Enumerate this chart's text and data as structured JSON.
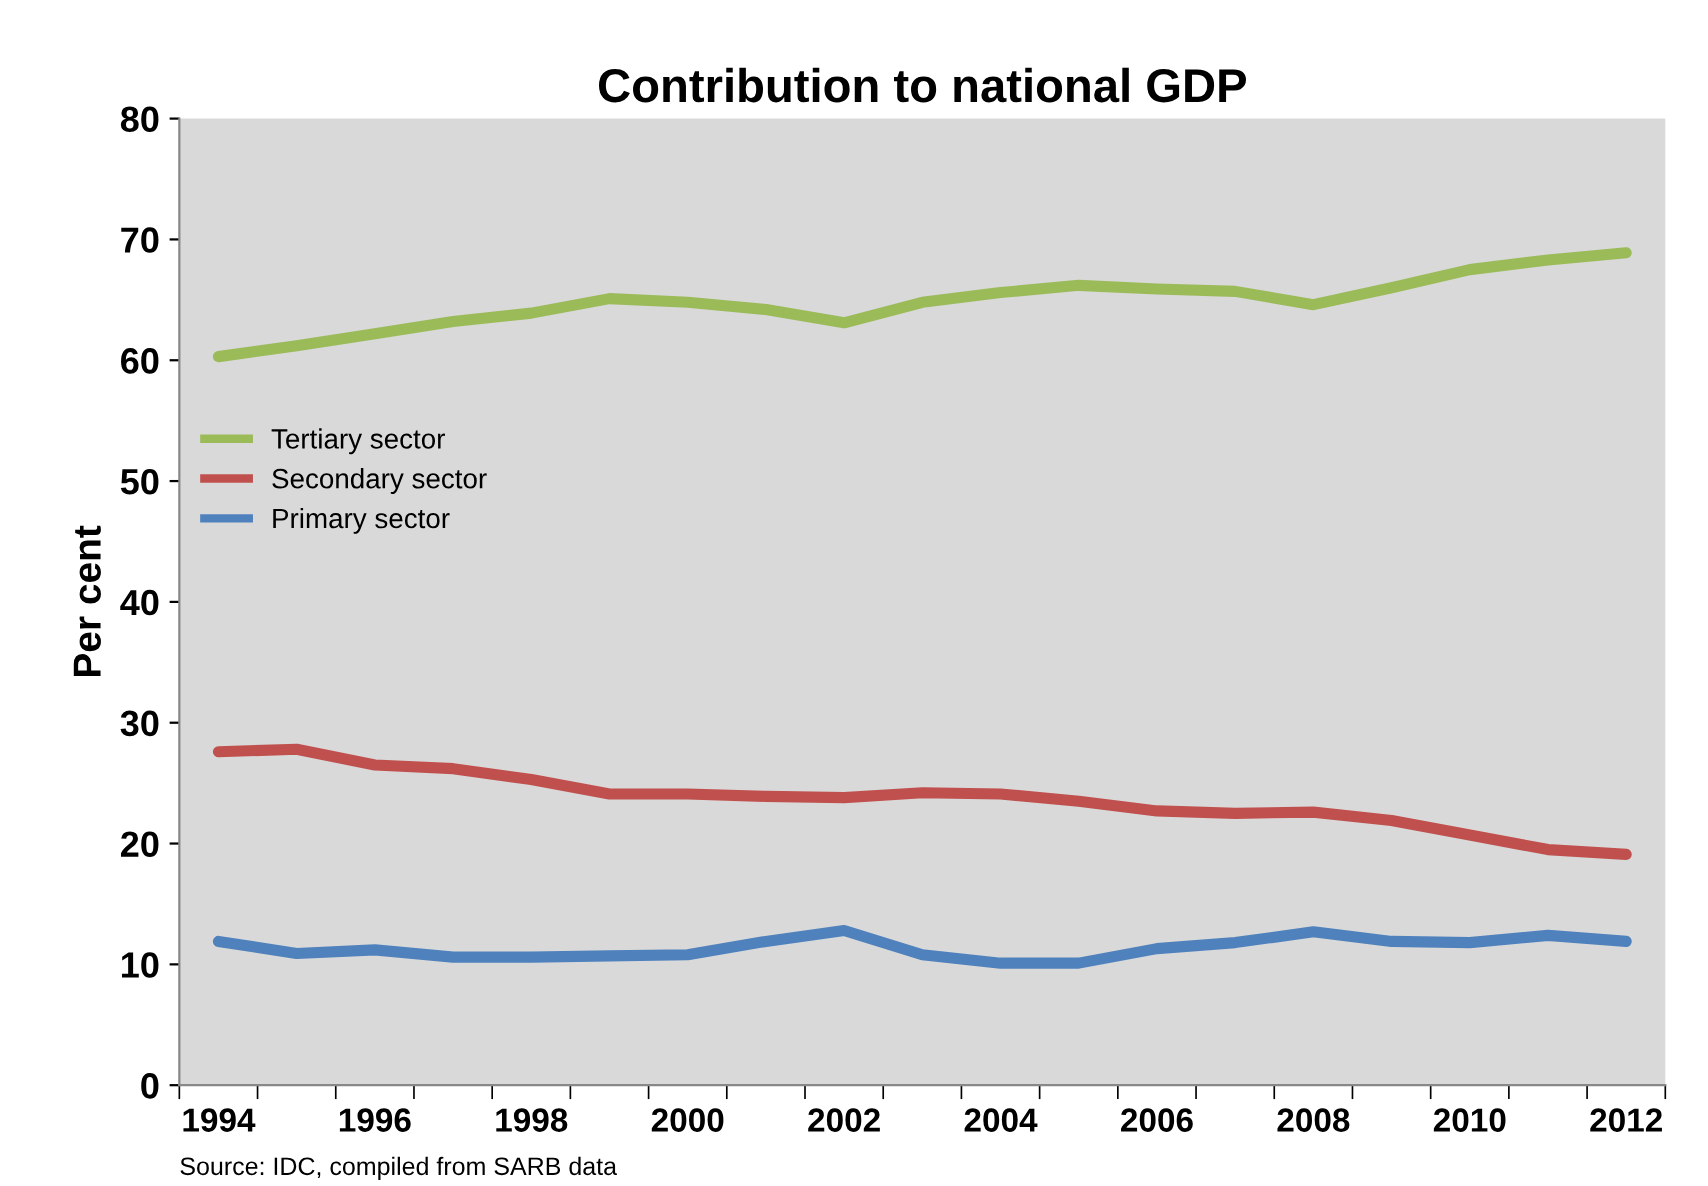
{
  "chart_data": {
    "type": "line",
    "title": "Contribution to national GDP",
    "ylabel": "Per cent",
    "categories": [
      "1994",
      null,
      "1996",
      null,
      "1998",
      null,
      "2000",
      null,
      "2002",
      null,
      "2004",
      null,
      "2006",
      null,
      "2008",
      null,
      "2010",
      null,
      "2012"
    ],
    "series": [
      {
        "name": "Tertiary sector",
        "color": "#9bbb59",
        "values": [
          60.3,
          61.2,
          62.2,
          63.2,
          63.9,
          65.1,
          64.8,
          64.2,
          63.1,
          64.8,
          65.6,
          66.2,
          65.9,
          65.7,
          64.6,
          66.0,
          67.5,
          68.3,
          68.9
        ]
      },
      {
        "name": "Secondary sector",
        "color": "#c0504d",
        "values": [
          27.6,
          27.8,
          26.5,
          26.2,
          25.3,
          24.1,
          24.1,
          23.9,
          23.8,
          24.2,
          24.1,
          23.5,
          22.7,
          22.5,
          22.6,
          21.9,
          20.7,
          19.5,
          19.1
        ]
      },
      {
        "name": "Primary sector",
        "color": "#4f81bd",
        "values": [
          11.9,
          10.9,
          11.2,
          10.6,
          10.6,
          10.7,
          10.8,
          11.9,
          12.8,
          10.8,
          10.1,
          10.1,
          11.3,
          11.8,
          12.7,
          11.9,
          11.8,
          12.4,
          11.9
        ]
      }
    ],
    "ylim": [
      0,
      80
    ],
    "yticks": [
      0,
      10,
      20,
      30,
      40,
      50,
      60,
      70,
      80
    ],
    "grid": false,
    "legend": "center left",
    "marker": "none",
    "line_style": "solid",
    "annotations": [
      "Source: IDC, compiled from SARB data"
    ]
  }
}
